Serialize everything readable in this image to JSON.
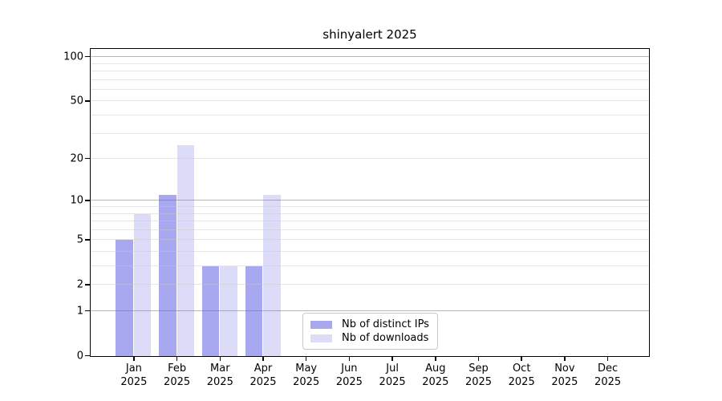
{
  "chart_data": {
    "type": "bar",
    "title": "shinyalert 2025",
    "categories": [
      {
        "month": "Jan",
        "year": "2025"
      },
      {
        "month": "Feb",
        "year": "2025"
      },
      {
        "month": "Mar",
        "year": "2025"
      },
      {
        "month": "Apr",
        "year": "2025"
      },
      {
        "month": "May",
        "year": "2025"
      },
      {
        "month": "Jun",
        "year": "2025"
      },
      {
        "month": "Jul",
        "year": "2025"
      },
      {
        "month": "Aug",
        "year": "2025"
      },
      {
        "month": "Sep",
        "year": "2025"
      },
      {
        "month": "Oct",
        "year": "2025"
      },
      {
        "month": "Nov",
        "year": "2025"
      },
      {
        "month": "Dec",
        "year": "2025"
      }
    ],
    "series": [
      {
        "name": "Nb of distinct IPs",
        "color": "#a8a8f0",
        "values": [
          5,
          11,
          3,
          3,
          0,
          0,
          0,
          0,
          0,
          0,
          0,
          0
        ]
      },
      {
        "name": "Nb of downloads",
        "color": "#dcdcf8",
        "values": [
          8,
          25,
          3,
          11,
          0,
          0,
          0,
          0,
          0,
          0,
          0,
          0
        ]
      }
    ],
    "yscale": "log10(1+v)",
    "ylim": [
      0,
      100
    ],
    "ytick_labels": [
      0,
      1,
      2,
      5,
      10,
      20,
      50,
      100
    ],
    "gridlines_major": [
      1,
      10,
      100
    ],
    "gridlines_minor": [
      2,
      3,
      4,
      5,
      6,
      7,
      8,
      9,
      20,
      30,
      40,
      50,
      60,
      70,
      80,
      90
    ],
    "grid_on": true,
    "legend_position": "lower-center-inside",
    "xlabel": "",
    "ylabel": ""
  }
}
